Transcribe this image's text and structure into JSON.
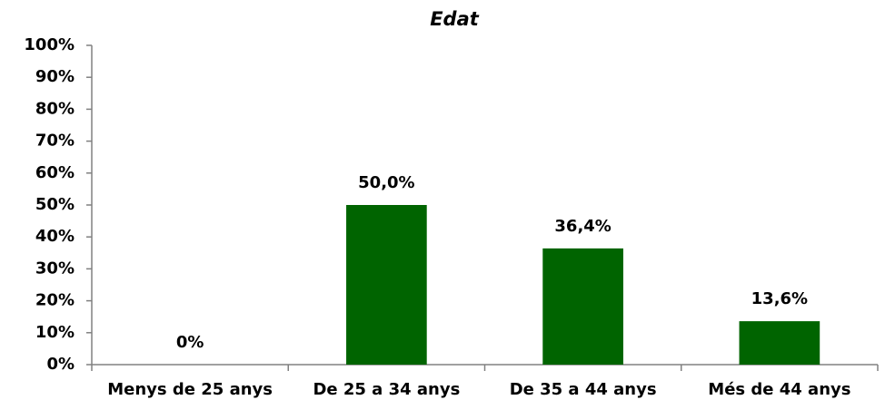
{
  "chart_data": {
    "type": "bar",
    "title": "Edat",
    "categories": [
      "Menys de 25 anys",
      "De 25 a 34 anys",
      "De 35 a 44 anys",
      "Més de 44 anys"
    ],
    "values": [
      0,
      50.0,
      36.4,
      13.6
    ],
    "value_labels": [
      "0%",
      "50,0%",
      "36,4%",
      "13,6%"
    ],
    "color": "#006400",
    "ylim": [
      0,
      100
    ],
    "yticks": [
      {
        "value": 0,
        "label": "0%"
      },
      {
        "value": 10,
        "label": "10%"
      },
      {
        "value": 20,
        "label": "20%"
      },
      {
        "value": 30,
        "label": "30%"
      },
      {
        "value": 40,
        "label": "40%"
      },
      {
        "value": 50,
        "label": "50%"
      },
      {
        "value": 60,
        "label": "60%"
      },
      {
        "value": 70,
        "label": "70%"
      },
      {
        "value": 80,
        "label": "80%"
      },
      {
        "value": 90,
        "label": "90%"
      },
      {
        "value": 100,
        "label": "100%"
      }
    ],
    "grid": false
  }
}
